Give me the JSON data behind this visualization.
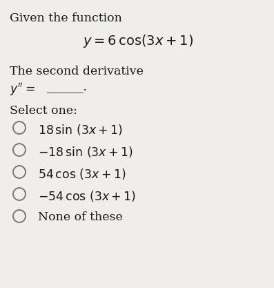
{
  "bg_color": "#f0eeeb",
  "title_line1": "Given the function",
  "function_eq": "$y = 6\\,\\cos(3x + 1)$",
  "derivative_label": "The second derivative",
  "derivative_line_math": "$y'' = $",
  "derivative_blank": "______.",
  "select_label": "Select one:",
  "options": [
    "$18\\,\\sin\\,(3x + 1)$",
    "$-18\\,\\sin\\,(3x + 1)$",
    "$54\\,\\cos\\,(3x + 1)$",
    "$-54\\,\\cos\\,(3x + 1)$",
    "None of these"
  ],
  "text_color": "#1a1a1a",
  "circle_edge_color": "#777777",
  "font_size_body": 12.5,
  "font_size_eq": 14,
  "font_size_options": 12.5,
  "fig_width": 3.97,
  "fig_height": 4.17,
  "dpi": 100
}
